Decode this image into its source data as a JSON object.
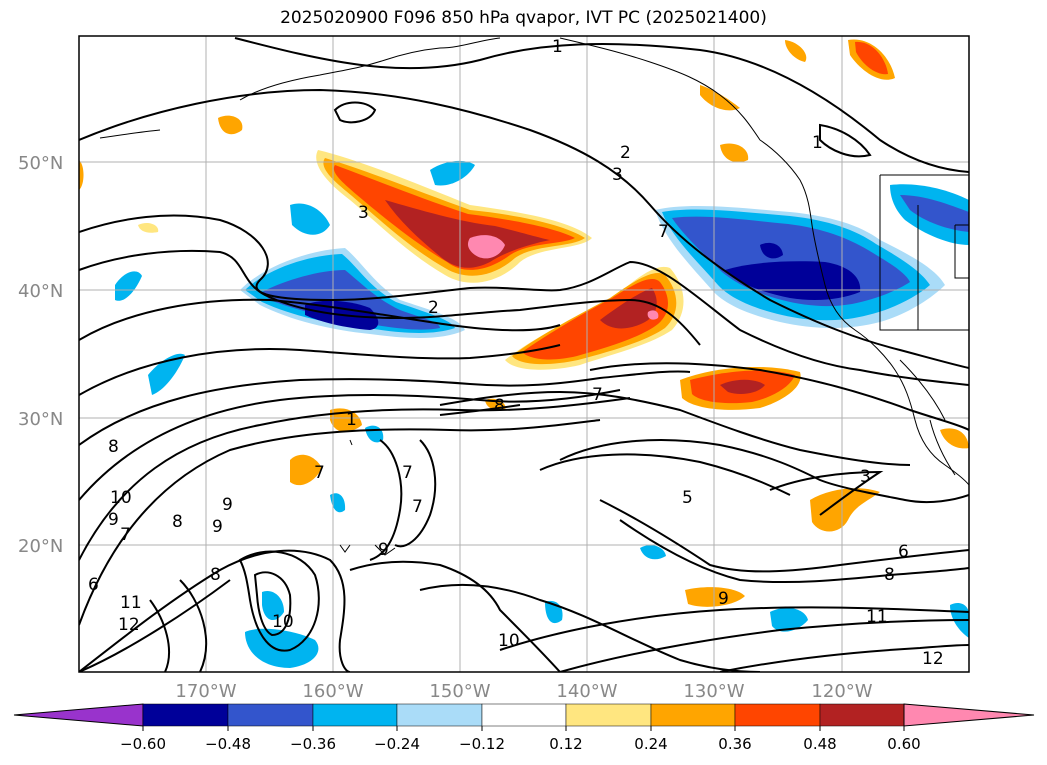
{
  "title": "2025020900 F096 850 hPa qvapor, IVT PC (2025021400)",
  "map": {
    "lat_labels": [
      "50°N",
      "40°N",
      "30°N",
      "20°N"
    ],
    "lon_labels": [
      "170°W",
      "160°W",
      "150°W",
      "140°W",
      "130°W",
      "120°W"
    ]
  },
  "colorbar": {
    "tick_labels": [
      "−0.60",
      "−0.48",
      "−0.36",
      "−0.24",
      "−0.12",
      "0.12",
      "0.24",
      "0.36",
      "0.48",
      "0.60"
    ],
    "colors": [
      "#9933cc",
      "#000099",
      "#3355cc",
      "#00b4f0",
      "#aadcf8",
      "#ffffff",
      "#ffe680",
      "#ffa500",
      "#ff4500",
      "#b22222",
      "#ff88b0"
    ]
  },
  "contour_labels": [
    "1",
    "1",
    "2",
    "3",
    "3",
    "2",
    "7",
    "8",
    "7",
    "5",
    "3",
    "6",
    "8",
    "11",
    "12",
    "10",
    "9",
    "8",
    "7",
    "8",
    "9",
    "10",
    "11",
    "12",
    "6",
    "9",
    "9",
    "8",
    "10",
    "7",
    "7",
    "7",
    "1",
    "9"
  ]
}
